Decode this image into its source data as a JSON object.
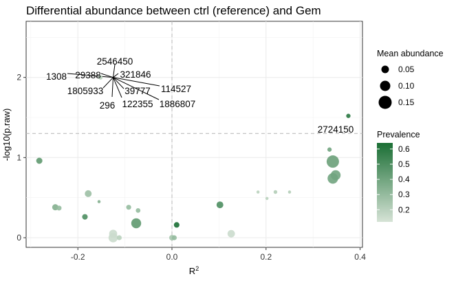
{
  "chart_data": {
    "type": "scatter",
    "title": "Differential abundance between ctrl (reference) and Gem",
    "xlabel": "R",
    "xlabel_superscript": "2",
    "ylabel": "-log10(p.raw)",
    "xlim": [
      -0.31,
      0.405
    ],
    "ylim": [
      -0.12,
      2.7
    ],
    "x_ticks": [
      -0.2,
      0.0,
      0.2,
      0.4
    ],
    "x_tick_labels": [
      "-0.2",
      "0.0",
      "0.2",
      "0.4"
    ],
    "y_ticks": [
      0,
      1,
      2
    ],
    "y_tick_labels": [
      "0",
      "1",
      "2"
    ],
    "reference_lines": {
      "x": 0.0,
      "y": 1.3
    },
    "grid": true,
    "legend_position": "right",
    "size_legend": {
      "title": "Mean abundance",
      "values": [
        0.05,
        0.1,
        0.15
      ],
      "labels": [
        "0.05",
        "0.10",
        "0.15"
      ]
    },
    "color_legend": {
      "title": "Prevalence",
      "values": [
        0.2,
        0.3,
        0.4,
        0.5,
        0.6
      ],
      "labels": [
        "0.2",
        "0.3",
        "0.4",
        "0.5",
        "0.6"
      ],
      "range": [
        0.12,
        0.64
      ],
      "low_color": "#d6e3d6",
      "high_color": "#1a6e34"
    },
    "points": [
      {
        "x": -0.152,
        "y": 2.0,
        "size": 0.03,
        "prevalence": 0.2
      },
      {
        "x": 0.375,
        "y": 1.52,
        "size": 0.03,
        "prevalence": 0.6
      },
      {
        "x": -0.282,
        "y": 0.96,
        "size": 0.06,
        "prevalence": 0.45
      },
      {
        "x": -0.178,
        "y": 0.55,
        "size": 0.07,
        "prevalence": 0.28
      },
      {
        "x": -0.155,
        "y": 0.45,
        "size": 0.01,
        "prevalence": 0.35
      },
      {
        "x": -0.248,
        "y": 0.38,
        "size": 0.06,
        "prevalence": 0.35
      },
      {
        "x": -0.24,
        "y": 0.37,
        "size": 0.04,
        "prevalence": 0.3
      },
      {
        "x": -0.185,
        "y": 0.26,
        "size": 0.05,
        "prevalence": 0.5
      },
      {
        "x": -0.092,
        "y": 0.38,
        "size": 0.04,
        "prevalence": 0.3
      },
      {
        "x": -0.072,
        "y": 0.34,
        "size": 0.035,
        "prevalence": 0.3
      },
      {
        "x": -0.076,
        "y": 0.18,
        "size": 0.12,
        "prevalence": 0.45
      },
      {
        "x": -0.125,
        "y": 0.05,
        "size": 0.09,
        "prevalence": 0.15
      },
      {
        "x": -0.125,
        "y": 0.0,
        "size": 0.11,
        "prevalence": 0.15
      },
      {
        "x": -0.112,
        "y": 0.0,
        "size": 0.04,
        "prevalence": 0.2
      },
      {
        "x": 0.0,
        "y": 0.0,
        "size": 0.05,
        "prevalence": 0.25
      },
      {
        "x": 0.005,
        "y": 0.0,
        "size": 0.04,
        "prevalence": 0.3
      },
      {
        "x": 0.01,
        "y": 0.16,
        "size": 0.05,
        "prevalence": 0.64
      },
      {
        "x": 0.102,
        "y": 0.41,
        "size": 0.07,
        "prevalence": 0.5
      },
      {
        "x": 0.126,
        "y": 0.05,
        "size": 0.08,
        "prevalence": 0.15
      },
      {
        "x": 0.183,
        "y": 0.57,
        "size": 0.01,
        "prevalence": 0.2
      },
      {
        "x": 0.202,
        "y": 0.49,
        "size": 0.01,
        "prevalence": 0.2
      },
      {
        "x": 0.22,
        "y": 0.57,
        "size": 0.02,
        "prevalence": 0.22
      },
      {
        "x": 0.25,
        "y": 0.57,
        "size": 0.01,
        "prevalence": 0.22
      },
      {
        "x": 0.335,
        "y": 1.1,
        "size": 0.03,
        "prevalence": 0.4
      },
      {
        "x": 0.342,
        "y": 0.95,
        "size": 0.16,
        "prevalence": 0.42
      },
      {
        "x": 0.348,
        "y": 0.78,
        "size": 0.12,
        "prevalence": 0.4
      },
      {
        "x": 0.342,
        "y": 0.74,
        "size": 0.13,
        "prevalence": 0.4
      }
    ],
    "annotations": [
      {
        "text": "2546450",
        "x": -0.125,
        "y": 2.0
      },
      {
        "text": "1308",
        "x": -0.125,
        "y": 2.0
      },
      {
        "text": "29388",
        "x": -0.125,
        "y": 2.0
      },
      {
        "text": "321846",
        "x": -0.125,
        "y": 2.0
      },
      {
        "text": "1805933",
        "x": -0.125,
        "y": 2.0
      },
      {
        "text": "39777",
        "x": -0.125,
        "y": 2.0
      },
      {
        "text": "114527",
        "x": -0.125,
        "y": 2.0
      },
      {
        "text": "296",
        "x": -0.125,
        "y": 2.0
      },
      {
        "text": "122355",
        "x": -0.125,
        "y": 2.0
      },
      {
        "text": "1886807",
        "x": -0.125,
        "y": 2.0
      },
      {
        "text": "2724150",
        "x": 0.375,
        "y": 1.52
      }
    ]
  }
}
